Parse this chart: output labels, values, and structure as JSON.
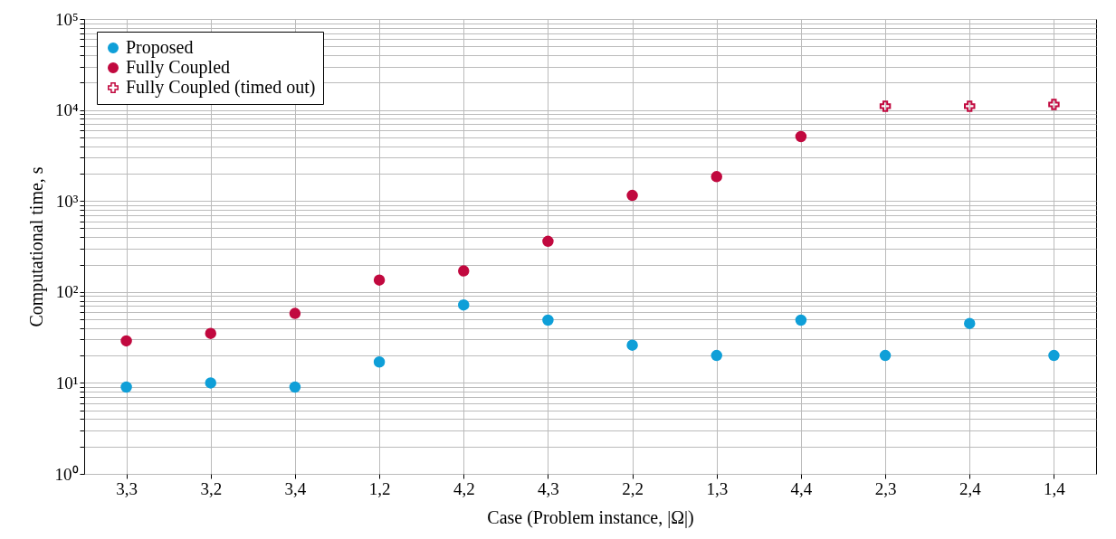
{
  "chart_data": {
    "type": "scatter",
    "xlabel": "Case (Problem instance, |Ω|)",
    "ylabel": "Computational time, s",
    "categories": [
      "3,3",
      "3,2",
      "3,4",
      "1,2",
      "4,2",
      "4,3",
      "2,2",
      "1,3",
      "4,4",
      "2,3",
      "2,4",
      "1,4"
    ],
    "series": [
      {
        "name": "Proposed",
        "color": "#0f9fd8",
        "marker": "circle",
        "values": [
          9,
          10,
          9,
          17,
          72,
          49,
          26,
          20,
          49,
          20,
          45,
          20
        ]
      },
      {
        "name": "Fully Coupled",
        "color": "#c1093f",
        "marker": "circle",
        "values": [
          29,
          35,
          58,
          135,
          170,
          360,
          1150,
          1850,
          5100,
          null,
          null,
          null
        ]
      },
      {
        "name": "Fully Coupled (timed out)",
        "color": "#c1093f",
        "marker": "cross",
        "values": [
          null,
          null,
          null,
          null,
          null,
          null,
          null,
          null,
          null,
          11000,
          11000,
          11500
        ]
      }
    ],
    "log": true,
    "ylim": [
      1,
      100000
    ],
    "yticks": [
      {
        "value": 1,
        "label": "10⁰"
      },
      {
        "value": 2,
        "label": null
      },
      {
        "value": 3,
        "label": null
      },
      {
        "value": 4,
        "label": null
      },
      {
        "value": 5,
        "label": null
      },
      {
        "value": 6,
        "label": null
      },
      {
        "value": 7,
        "label": null
      },
      {
        "value": 8,
        "label": null
      },
      {
        "value": 9,
        "label": null
      },
      {
        "value": 10,
        "label": "10¹"
      },
      {
        "value": 20,
        "label": null
      },
      {
        "value": 30,
        "label": null
      },
      {
        "value": 40,
        "label": null
      },
      {
        "value": 50,
        "label": null
      },
      {
        "value": 60,
        "label": null
      },
      {
        "value": 70,
        "label": null
      },
      {
        "value": 80,
        "label": null
      },
      {
        "value": 90,
        "label": null
      },
      {
        "value": 100,
        "label": "10²"
      },
      {
        "value": 200,
        "label": null
      },
      {
        "value": 300,
        "label": null
      },
      {
        "value": 400,
        "label": null
      },
      {
        "value": 500,
        "label": null
      },
      {
        "value": 600,
        "label": null
      },
      {
        "value": 700,
        "label": null
      },
      {
        "value": 800,
        "label": null
      },
      {
        "value": 900,
        "label": null
      },
      {
        "value": 1000,
        "label": "10³"
      },
      {
        "value": 2000,
        "label": null
      },
      {
        "value": 3000,
        "label": null
      },
      {
        "value": 4000,
        "label": null
      },
      {
        "value": 5000,
        "label": null
      },
      {
        "value": 6000,
        "label": null
      },
      {
        "value": 7000,
        "label": null
      },
      {
        "value": 8000,
        "label": null
      },
      {
        "value": 9000,
        "label": null
      },
      {
        "value": 10000,
        "label": "10⁴"
      },
      {
        "value": 20000,
        "label": null
      },
      {
        "value": 30000,
        "label": null
      },
      {
        "value": 40000,
        "label": null
      },
      {
        "value": 50000,
        "label": null
      },
      {
        "value": 60000,
        "label": null
      },
      {
        "value": 70000,
        "label": null
      },
      {
        "value": 80000,
        "label": null
      },
      {
        "value": 90000,
        "label": null
      },
      {
        "value": 100000,
        "label": "10⁵"
      }
    ],
    "grid": true,
    "legend": "top left"
  }
}
